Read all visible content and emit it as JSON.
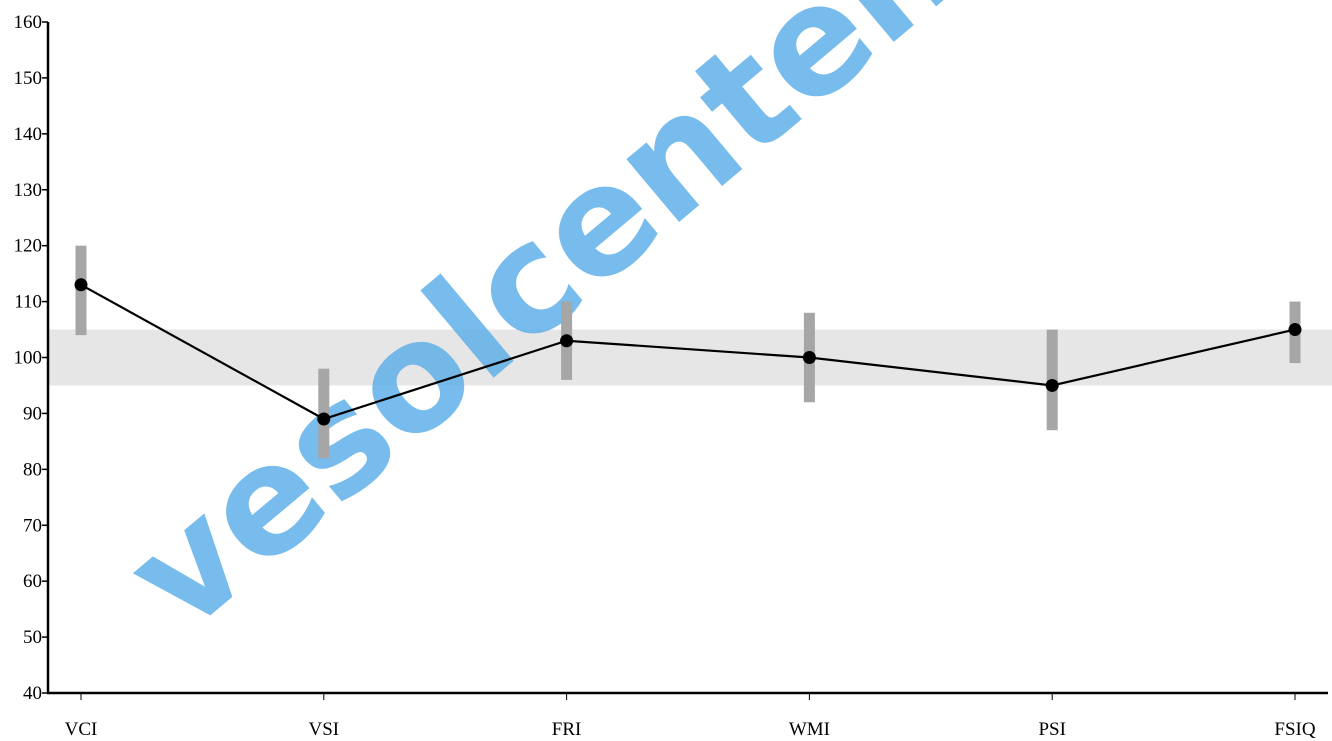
{
  "chart_data": {
    "type": "line",
    "title": "",
    "xlabel": "",
    "ylabel": "",
    "ylim": [
      40,
      160
    ],
    "y_ticks": [
      40,
      50,
      60,
      70,
      80,
      90,
      100,
      110,
      120,
      130,
      140,
      150,
      160
    ],
    "categories": [
      "VCI",
      "VSI",
      "FRI",
      "WMI",
      "PSI",
      "FSIQ"
    ],
    "series": [
      {
        "values": [
          113,
          89,
          103,
          100,
          95,
          105
        ],
        "error_low": [
          104,
          82,
          96,
          92,
          87,
          99
        ],
        "error_high": [
          120,
          98,
          110,
          108,
          105,
          110
        ]
      }
    ],
    "average_band": [
      95,
      105
    ],
    "grid": false,
    "legend": "none",
    "colors": {
      "line": "#000000",
      "marker": "#000000",
      "error_bar": "#a6a6a6",
      "band": "#e6e6e6",
      "axis": "#000000",
      "watermark": "#5aaee8"
    }
  },
  "watermark": {
    "text": "vesolcenter.c"
  }
}
